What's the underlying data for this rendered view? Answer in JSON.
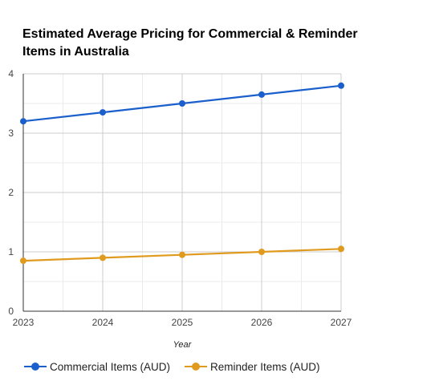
{
  "chart_data": {
    "type": "line",
    "title": "Estimated Average Pricing for Commercial & Reminder Items in Australia",
    "xlabel": "Year",
    "ylabel": "",
    "x": [
      "2023",
      "2024",
      "2025",
      "2026",
      "2027"
    ],
    "ylim": [
      0,
      4
    ],
    "yticks": [
      "0",
      "1",
      "2",
      "3",
      "4"
    ],
    "grid": true,
    "legend_position": "bottom",
    "series": [
      {
        "name": "Commercial Items (AUD)",
        "color": "#1a5fcc",
        "values": [
          3.2,
          3.35,
          3.5,
          3.65,
          3.8
        ]
      },
      {
        "name": "Reminder Items (AUD)",
        "color": "#e09a1e",
        "values": [
          0.85,
          0.9,
          0.95,
          1.0,
          1.05
        ]
      }
    ]
  }
}
